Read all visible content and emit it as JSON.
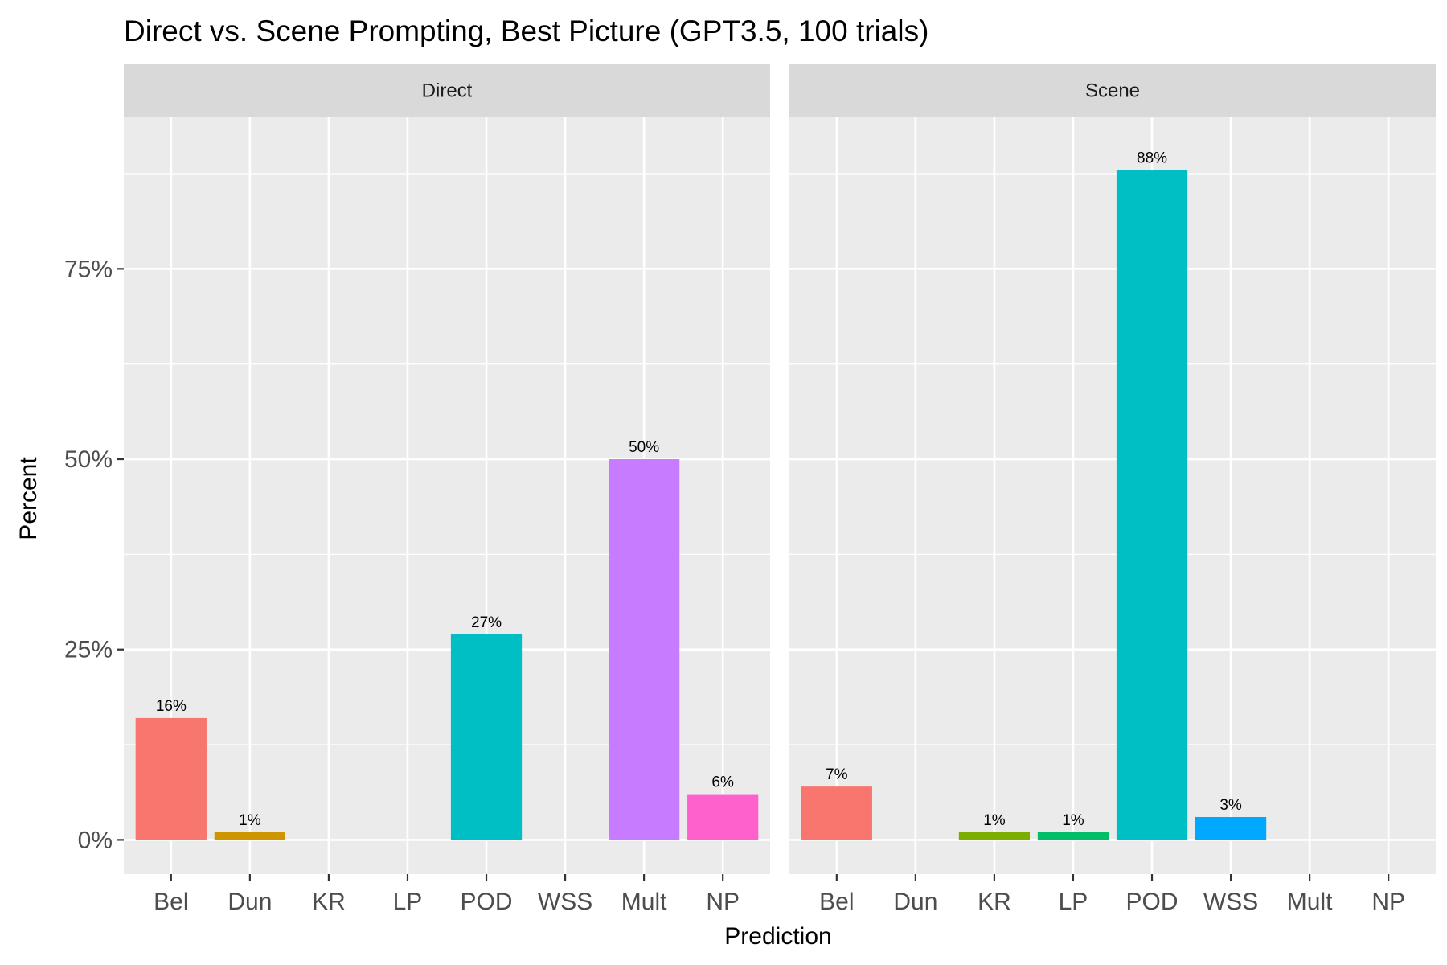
{
  "chart_data": {
    "type": "bar",
    "title": "Direct vs. Scene Prompting, Best Picture (GPT3.5, 100 trials)",
    "xlabel": "Prediction",
    "ylabel": "Percent",
    "ylim": [
      -4.5,
      95
    ],
    "y_ticks": [
      0,
      25,
      50,
      75
    ],
    "y_tick_labels": [
      "0%",
      "25%",
      "50%",
      "75%"
    ],
    "categories": [
      "Bel",
      "Dun",
      "KR",
      "LP",
      "POD",
      "WSS",
      "Mult",
      "NP"
    ],
    "category_colors": {
      "Bel": "#F8766D",
      "Dun": "#CD9600",
      "KR": "#7CAE00",
      "LP": "#00BE67",
      "POD": "#00BFC4",
      "WSS": "#00A9FF",
      "Mult": "#C77CFF",
      "NP": "#FF61CC"
    },
    "panels": [
      {
        "name": "Direct",
        "values": [
          16,
          1,
          0,
          0,
          27,
          0,
          50,
          6
        ],
        "labels": [
          "16%",
          "1%",
          "",
          "",
          "27%",
          "",
          "50%",
          "6%"
        ]
      },
      {
        "name": "Scene",
        "values": [
          7,
          0,
          1,
          1,
          88,
          3,
          0,
          0
        ],
        "labels": [
          "7%",
          "",
          "1%",
          "1%",
          "88%",
          "3%",
          "",
          ""
        ]
      }
    ],
    "grid": true,
    "legend": "none",
    "colors": {
      "panel_background": "#EBEBEB",
      "strip_background": "#D9D9D9",
      "grid_line": "#FFFFFF",
      "tick_text": "#4D4D4D",
      "tick_mark": "#333333"
    }
  }
}
